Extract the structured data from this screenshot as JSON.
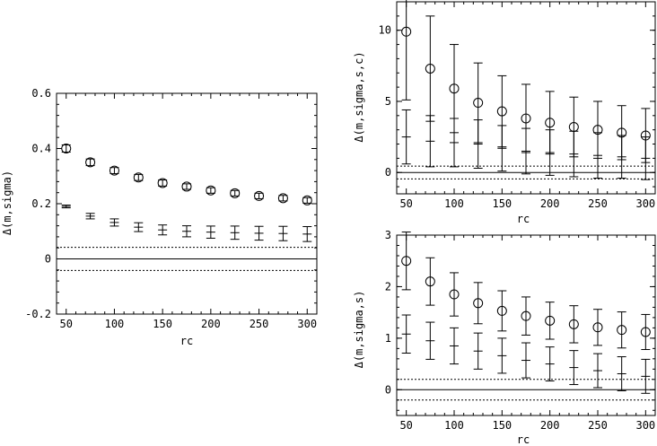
{
  "chart_data": [
    {
      "type": "scatter",
      "xlabel": "rc",
      "ylabel": "Δ(m,sigma)",
      "xlim": [
        40,
        310
      ],
      "ylim": [
        -0.2,
        0.6
      ],
      "xticks": [
        50,
        100,
        150,
        200,
        250,
        300
      ],
      "yticks": [
        -0.2,
        0,
        0.2,
        0.4,
        0.6
      ],
      "ytick_labels": [
        "-0.2",
        "0",
        "0.2",
        "0.4",
        "0.6"
      ],
      "x": [
        50,
        75,
        100,
        125,
        150,
        175,
        200,
        225,
        250,
        275,
        300
      ],
      "series": [
        {
          "marker": "circle",
          "values": [
            0.4,
            0.35,
            0.32,
            0.295,
            0.275,
            0.262,
            0.248,
            0.238,
            0.228,
            0.22,
            0.212
          ],
          "err": [
            0.013,
            0.012,
            0.011,
            0.011,
            0.011,
            0.01,
            0.01,
            0.01,
            0.01,
            0.01,
            0.01
          ]
        },
        {
          "marker": "plus",
          "values": [
            0.19,
            0.155,
            0.132,
            0.115,
            0.105,
            0.1,
            0.097,
            0.095,
            0.093,
            0.092,
            0.09
          ],
          "err": [
            0.005,
            0.01,
            0.013,
            0.016,
            0.018,
            0.02,
            0.022,
            0.024,
            0.025,
            0.026,
            0.027
          ]
        }
      ],
      "hlines": [
        {
          "y": 0,
          "style": "solid"
        },
        {
          "y": 0.042,
          "style": "dotted"
        },
        {
          "y": -0.042,
          "style": "dotted"
        }
      ]
    },
    {
      "type": "scatter",
      "xlabel": "rc",
      "ylabel": "Δ(m,sigma,s,c)",
      "xlim": [
        40,
        310
      ],
      "ylim": [
        -1.5,
        12
      ],
      "xticks": [
        50,
        100,
        150,
        200,
        250,
        300
      ],
      "yticks": [
        0,
        5,
        10
      ],
      "ytick_labels": [
        "0",
        "5",
        "10"
      ],
      "x": [
        50,
        75,
        100,
        125,
        150,
        175,
        200,
        225,
        250,
        275,
        300
      ],
      "series": [
        {
          "marker": "circle",
          "values": [
            9.9,
            7.3,
            5.9,
            4.9,
            4.3,
            3.8,
            3.5,
            3.2,
            3.0,
            2.8,
            2.6
          ],
          "err": [
            4.8,
            3.7,
            3.1,
            2.8,
            2.5,
            2.4,
            2.2,
            2.1,
            2.0,
            1.9,
            1.9
          ]
        },
        {
          "marker": "plus",
          "values": [
            2.5,
            2.2,
            2.1,
            2.0,
            1.7,
            1.5,
            1.4,
            1.3,
            1.2,
            1.1,
            1.0
          ],
          "err": [
            1.9,
            1.8,
            1.7,
            1.7,
            1.6,
            1.6,
            1.6,
            1.6,
            1.6,
            1.5,
            1.5
          ]
        }
      ],
      "hlines": [
        {
          "y": 0,
          "style": "solid"
        },
        {
          "y": 0.45,
          "style": "dotted"
        },
        {
          "y": -0.45,
          "style": "dotted"
        }
      ]
    },
    {
      "type": "scatter",
      "xlabel": "rc",
      "ylabel": "Δ(m,sigma,s)",
      "xlim": [
        40,
        310
      ],
      "ylim": [
        -0.5,
        3
      ],
      "xticks": [
        50,
        100,
        150,
        200,
        250,
        300
      ],
      "yticks": [
        0,
        1,
        2,
        3
      ],
      "ytick_labels": [
        "0",
        "1",
        "2",
        "3"
      ],
      "x": [
        50,
        75,
        100,
        125,
        150,
        175,
        200,
        225,
        250,
        275,
        300
      ],
      "series": [
        {
          "marker": "circle",
          "values": [
            2.5,
            2.1,
            1.85,
            1.68,
            1.53,
            1.43,
            1.34,
            1.27,
            1.21,
            1.16,
            1.12
          ],
          "err": [
            0.56,
            0.46,
            0.42,
            0.4,
            0.39,
            0.37,
            0.36,
            0.36,
            0.35,
            0.35,
            0.34
          ]
        },
        {
          "marker": "plus",
          "values": [
            1.08,
            0.95,
            0.85,
            0.75,
            0.66,
            0.57,
            0.5,
            0.43,
            0.37,
            0.31,
            0.26
          ],
          "err": [
            0.37,
            0.36,
            0.35,
            0.35,
            0.34,
            0.34,
            0.33,
            0.33,
            0.33,
            0.33,
            0.33
          ]
        }
      ],
      "hlines": [
        {
          "y": 0,
          "style": "solid"
        },
        {
          "y": 0.2,
          "style": "dotted"
        },
        {
          "y": -0.2,
          "style": "dotted"
        }
      ]
    }
  ]
}
